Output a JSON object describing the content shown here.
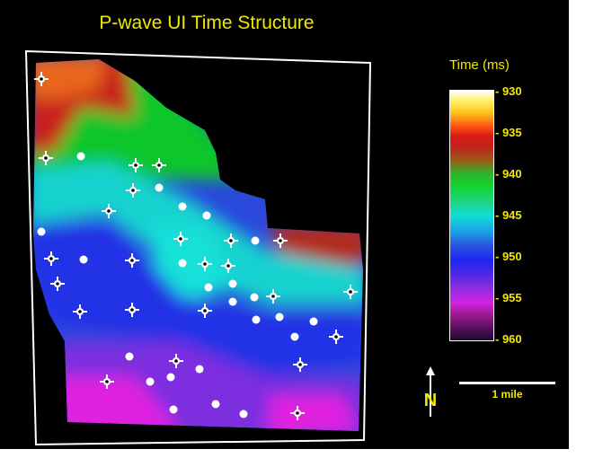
{
  "title": "P-wave UI Time Structure",
  "legend": {
    "title": "Time (ms)",
    "ticks": [
      "- 930",
      "- 935",
      "- 940",
      "- 945",
      "- 950",
      "- 955",
      "- 960"
    ],
    "colors": [
      "#ffffff",
      "#d81c12",
      "#15d22d",
      "#12ddd2",
      "#1f24f2",
      "#d223e1",
      "#1a0a2a"
    ]
  },
  "north_arrow": {
    "label": "N",
    "icon": "north-arrow-icon"
  },
  "scale_bar": {
    "label": "1 mile"
  },
  "wells": {
    "cross_count": 24,
    "dot_count": 23,
    "marker_colors": {
      "cross": "#ffffff",
      "dot": "#ffffff",
      "center": "#000000"
    }
  }
}
